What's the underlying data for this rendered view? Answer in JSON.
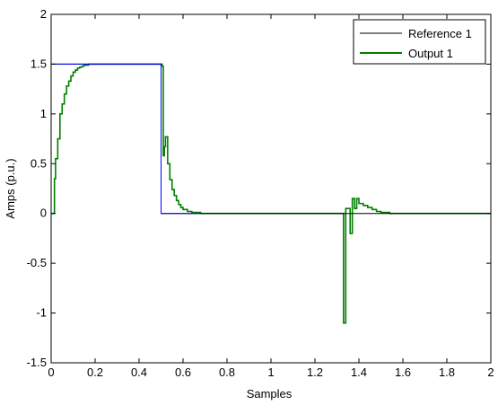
{
  "chart_data": {
    "type": "line",
    "title": "",
    "xlabel": "Samples",
    "ylabel": "Amps  (p.u.)",
    "xlim": [
      0,
      2
    ],
    "ylim": [
      -1.5,
      2
    ],
    "xticks": [
      0,
      0.2,
      0.4,
      0.6,
      0.8,
      1,
      1.2,
      1.4,
      1.6,
      1.8,
      2
    ],
    "xtick_labels": [
      "0",
      "0.2",
      "0.4",
      "0.6",
      "0.8",
      "1",
      "1.2",
      "1.4",
      "1.6",
      "1.8",
      "2"
    ],
    "yticks": [
      -1.5,
      -1,
      -0.5,
      0,
      0.5,
      1,
      1.5,
      2
    ],
    "ytick_labels": [
      "-1.5",
      "-1",
      "-0.5",
      "0",
      "0.5",
      "1",
      "1.5",
      "2"
    ],
    "grid": false,
    "legend_position": "top-right",
    "series": [
      {
        "name": "Reference 1",
        "color": "#000000",
        "style": "step",
        "points": [
          [
            0,
            1.5
          ],
          [
            0.5,
            1.5
          ],
          [
            0.5,
            0
          ],
          [
            2,
            0
          ]
        ]
      },
      {
        "name": "Output 1",
        "color": "#007f00",
        "style": "step",
        "points": [
          [
            0.0,
            0.0
          ],
          [
            0.015,
            0.0
          ],
          [
            0.015,
            0.35
          ],
          [
            0.02,
            0.35
          ],
          [
            0.02,
            0.55
          ],
          [
            0.03,
            0.55
          ],
          [
            0.03,
            0.75
          ],
          [
            0.04,
            0.75
          ],
          [
            0.04,
            1.0
          ],
          [
            0.05,
            1.0
          ],
          [
            0.05,
            1.1
          ],
          [
            0.06,
            1.1
          ],
          [
            0.06,
            1.2
          ],
          [
            0.07,
            1.2
          ],
          [
            0.07,
            1.28
          ],
          [
            0.08,
            1.28
          ],
          [
            0.08,
            1.33
          ],
          [
            0.09,
            1.33
          ],
          [
            0.09,
            1.38
          ],
          [
            0.1,
            1.38
          ],
          [
            0.1,
            1.42
          ],
          [
            0.11,
            1.42
          ],
          [
            0.11,
            1.44
          ],
          [
            0.12,
            1.44
          ],
          [
            0.12,
            1.46
          ],
          [
            0.13,
            1.46
          ],
          [
            0.13,
            1.47
          ],
          [
            0.14,
            1.47
          ],
          [
            0.14,
            1.48
          ],
          [
            0.15,
            1.48
          ],
          [
            0.15,
            1.49
          ],
          [
            0.17,
            1.49
          ],
          [
            0.17,
            1.5
          ],
          [
            0.505,
            1.5
          ],
          [
            0.505,
            1.48
          ],
          [
            0.51,
            1.48
          ],
          [
            0.51,
            0.58
          ],
          [
            0.515,
            0.58
          ],
          [
            0.515,
            0.67
          ],
          [
            0.52,
            0.67
          ],
          [
            0.52,
            0.77
          ],
          [
            0.53,
            0.77
          ],
          [
            0.53,
            0.5
          ],
          [
            0.54,
            0.5
          ],
          [
            0.54,
            0.34
          ],
          [
            0.55,
            0.34
          ],
          [
            0.55,
            0.24
          ],
          [
            0.56,
            0.24
          ],
          [
            0.56,
            0.18
          ],
          [
            0.57,
            0.18
          ],
          [
            0.57,
            0.13
          ],
          [
            0.58,
            0.13
          ],
          [
            0.58,
            0.09
          ],
          [
            0.59,
            0.09
          ],
          [
            0.59,
            0.06
          ],
          [
            0.6,
            0.06
          ],
          [
            0.6,
            0.04
          ],
          [
            0.62,
            0.04
          ],
          [
            0.62,
            0.02
          ],
          [
            0.64,
            0.02
          ],
          [
            0.64,
            0.01
          ],
          [
            0.68,
            0.01
          ],
          [
            0.68,
            0.0
          ],
          [
            1.33,
            0.0
          ],
          [
            1.33,
            -1.1
          ],
          [
            1.34,
            -1.1
          ],
          [
            1.34,
            0.05
          ],
          [
            1.36,
            0.05
          ],
          [
            1.36,
            -0.2
          ],
          [
            1.37,
            -0.2
          ],
          [
            1.37,
            0.15
          ],
          [
            1.38,
            0.15
          ],
          [
            1.38,
            0.05
          ],
          [
            1.39,
            0.05
          ],
          [
            1.39,
            0.15
          ],
          [
            1.4,
            0.15
          ],
          [
            1.4,
            0.1
          ],
          [
            1.42,
            0.1
          ],
          [
            1.42,
            0.08
          ],
          [
            1.44,
            0.08
          ],
          [
            1.44,
            0.06
          ],
          [
            1.46,
            0.06
          ],
          [
            1.46,
            0.04
          ],
          [
            1.48,
            0.04
          ],
          [
            1.48,
            0.02
          ],
          [
            1.5,
            0.02
          ],
          [
            1.5,
            0.01
          ],
          [
            1.54,
            0.01
          ],
          [
            1.54,
            0.0
          ],
          [
            2.0,
            0.0
          ]
        ]
      },
      {
        "name": "",
        "color": "#0000ff",
        "style": "step",
        "points": [
          [
            0,
            1.5
          ],
          [
            0.5,
            1.5
          ],
          [
            0.5,
            0
          ],
          [
            0.68,
            0
          ]
        ]
      }
    ]
  }
}
